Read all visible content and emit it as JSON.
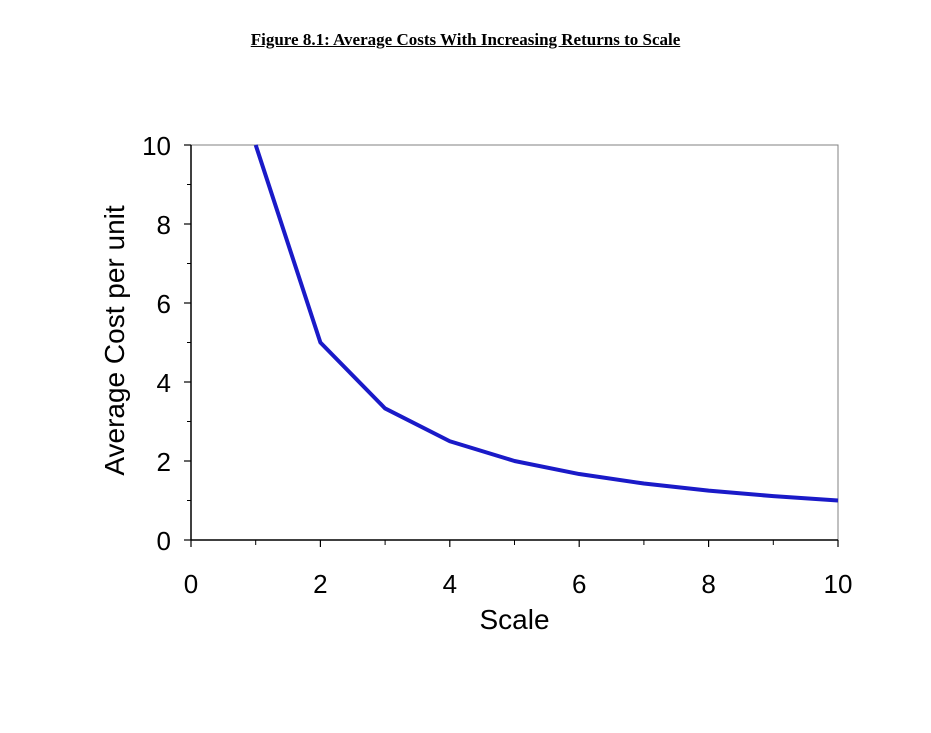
{
  "figure": {
    "title": "Figure 8.1:  Average Costs With Increasing Returns to Scale"
  },
  "chart_data": {
    "type": "line",
    "title": "Figure 8.1:  Average Costs With Increasing Returns to Scale",
    "xlabel": "Scale",
    "ylabel": "Average Cost per unit",
    "xlim": [
      0,
      10
    ],
    "ylim": [
      0,
      10
    ],
    "x_major_ticks": [
      0,
      2,
      4,
      6,
      8,
      10
    ],
    "x_minor_ticks": [
      1,
      3,
      5,
      7,
      9
    ],
    "y_major_ticks": [
      0,
      2,
      4,
      6,
      8,
      10
    ],
    "y_minor_ticks": [
      1,
      3,
      5,
      7,
      9
    ],
    "grid": false,
    "legend": "none",
    "series": [
      {
        "color": "#1a1ac8",
        "x": [
          1,
          2,
          3,
          4,
          5,
          6,
          7,
          8,
          9,
          10
        ],
        "y": [
          10,
          5,
          3.33,
          2.5,
          2,
          1.67,
          1.43,
          1.25,
          1.11,
          1
        ]
      }
    ]
  }
}
